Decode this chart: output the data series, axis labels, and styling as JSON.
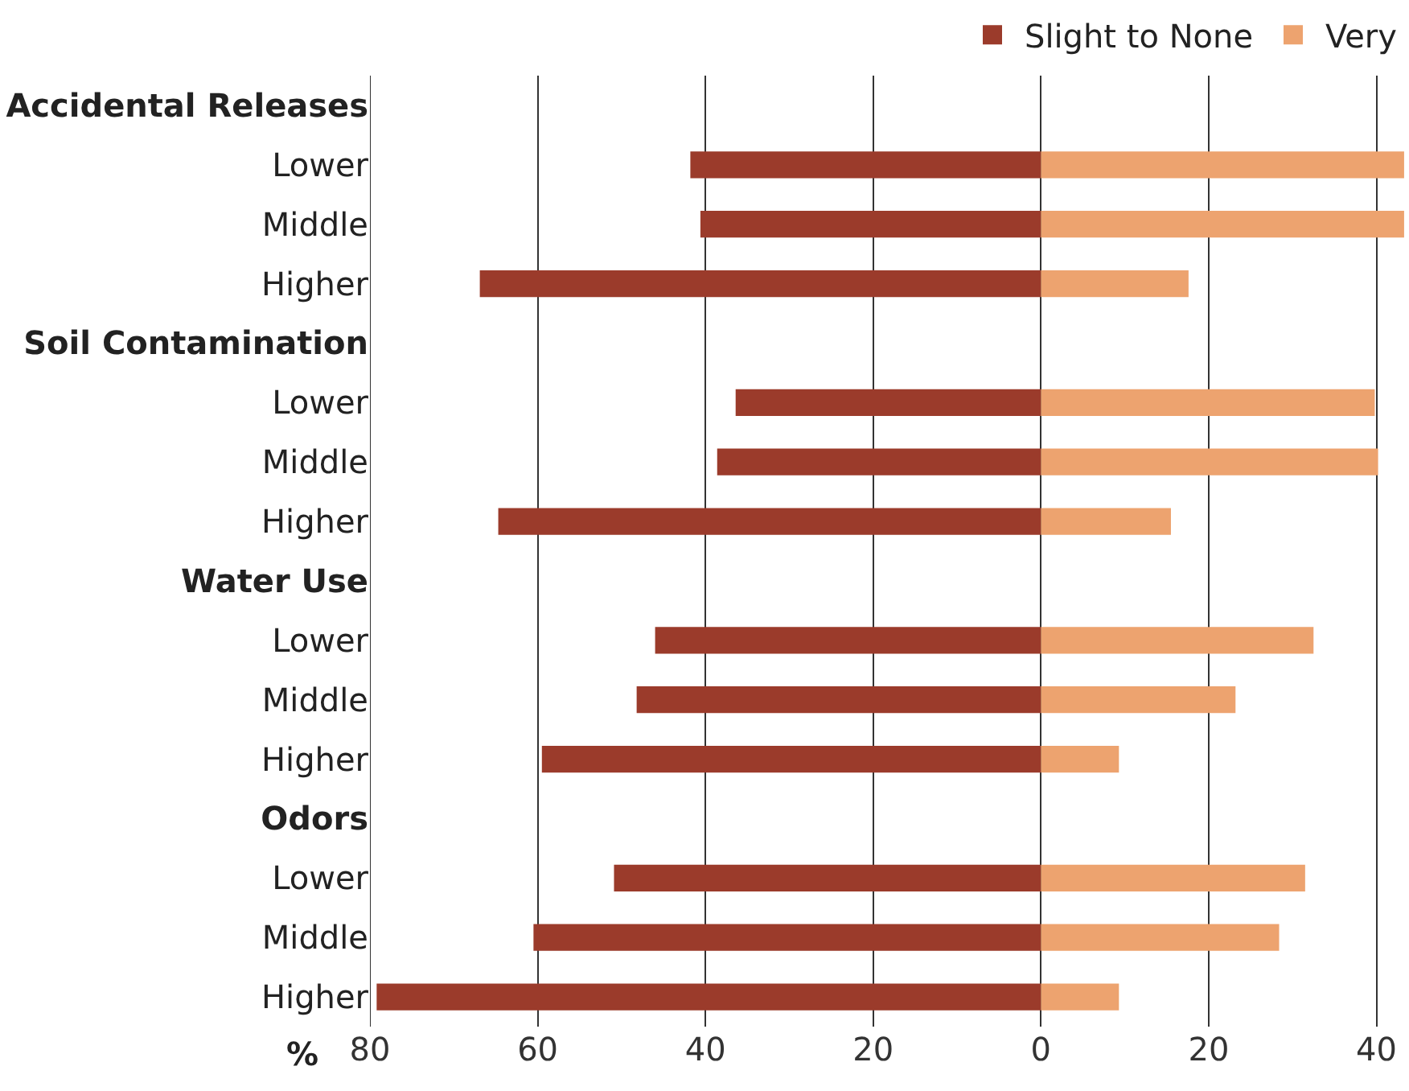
{
  "chart_data": {
    "type": "bar",
    "orientation": "horizontal",
    "categories": [
      "Accidental Releases",
      "Lower",
      "Middle",
      "Higher",
      "Soil Contamination",
      "Lower",
      "Middle",
      "Higher",
      "Water Use",
      "Lower",
      "Middle",
      "Higher",
      "Odors",
      "Lower",
      "Middle",
      "Higher"
    ],
    "series": [
      {
        "name": "Slight to None",
        "color": "#9b3b2b",
        "values": [
          null,
          -41.8,
          -40.6,
          -66.9,
          null,
          -36.4,
          -38.6,
          -64.7,
          null,
          -46,
          -48.2,
          -59.5,
          null,
          -50.9,
          -60.5,
          -79.2
        ]
      },
      {
        "name": "Very",
        "color": "#eda36f",
        "values": [
          null,
          43.3,
          43.3,
          17.6,
          null,
          39.8,
          40.2,
          15.5,
          null,
          32.5,
          23.2,
          9.3,
          null,
          31.5,
          28.4,
          9.3
        ]
      }
    ],
    "xlim": [
      -80,
      43.5
    ],
    "stacked": true,
    "xticks": [
      {
        "value": -80,
        "label": "80"
      },
      {
        "value": -60,
        "label": "60"
      },
      {
        "value": -40,
        "label": "40"
      },
      {
        "value": -20,
        "label": "20"
      },
      0,
      20,
      40
    ],
    "xlabel": "%",
    "grid": "x",
    "legend": "top right"
  }
}
